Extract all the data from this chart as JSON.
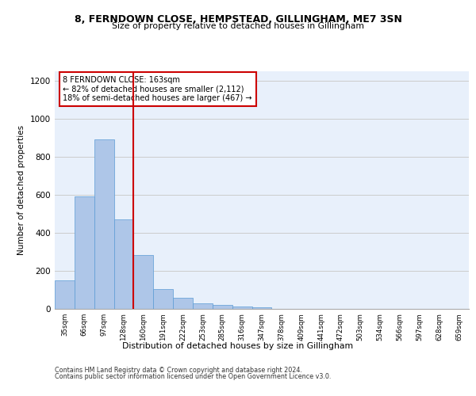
{
  "title1": "8, FERNDOWN CLOSE, HEMPSTEAD, GILLINGHAM, ME7 3SN",
  "title2": "Size of property relative to detached houses in Gillingham",
  "xlabel": "Distribution of detached houses by size in Gillingham",
  "ylabel": "Number of detached properties",
  "categories": [
    "35sqm",
    "66sqm",
    "97sqm",
    "128sqm",
    "160sqm",
    "191sqm",
    "222sqm",
    "253sqm",
    "285sqm",
    "316sqm",
    "347sqm",
    "378sqm",
    "409sqm",
    "441sqm",
    "472sqm",
    "503sqm",
    "534sqm",
    "566sqm",
    "597sqm",
    "628sqm",
    "659sqm"
  ],
  "values": [
    150,
    590,
    890,
    470,
    285,
    105,
    60,
    30,
    20,
    13,
    10,
    0,
    0,
    0,
    0,
    0,
    0,
    0,
    0,
    0,
    0
  ],
  "bar_color": "#aec6e8",
  "bar_edgecolor": "#5b9bd5",
  "vline_x": 3.5,
  "vline_color": "#cc0000",
  "annotation_text": "8 FERNDOWN CLOSE: 163sqm\n← 82% of detached houses are smaller (2,112)\n18% of semi-detached houses are larger (467) →",
  "annotation_box_color": "#ffffff",
  "annotation_box_edgecolor": "#cc0000",
  "ylim": [
    0,
    1250
  ],
  "yticks": [
    0,
    200,
    400,
    600,
    800,
    1000,
    1200
  ],
  "grid_color": "#cccccc",
  "bg_color": "#e8f0fb",
  "footer1": "Contains HM Land Registry data © Crown copyright and database right 2024.",
  "footer2": "Contains public sector information licensed under the Open Government Licence v3.0."
}
